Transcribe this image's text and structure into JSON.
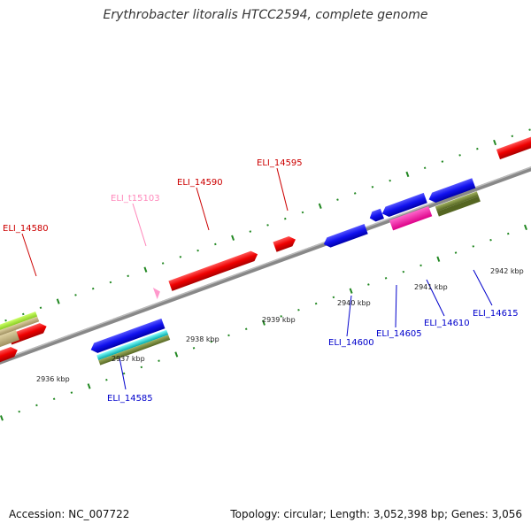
{
  "title": "Erythrobacter litoralis HTCC2594, complete genome",
  "footer": {
    "accession": "Accession: NC_007722",
    "topology": "Topology: circular; Length: 3,052,398 bp; Genes: 3,056"
  },
  "colors": {
    "forward_label": "#cc0000",
    "reverse_label": "#0000cc",
    "trna_label": "#ff88bb",
    "tick": "#228822",
    "backbone": "#888888"
  },
  "tick_labels": [
    "2936 kbp",
    "2937 kbp",
    "2938 kbp",
    "2939 kbp",
    "2940 kbp",
    "2941 kbp",
    "2942 kbp"
  ],
  "forward_labels": [
    "ELI_14580",
    "ELI_t15103",
    "ELI_14590",
    "ELI_14595"
  ],
  "reverse_labels": [
    "ELI_14585",
    "ELI_14600",
    "ELI_14605",
    "ELI_14610",
    "ELI_14615"
  ]
}
